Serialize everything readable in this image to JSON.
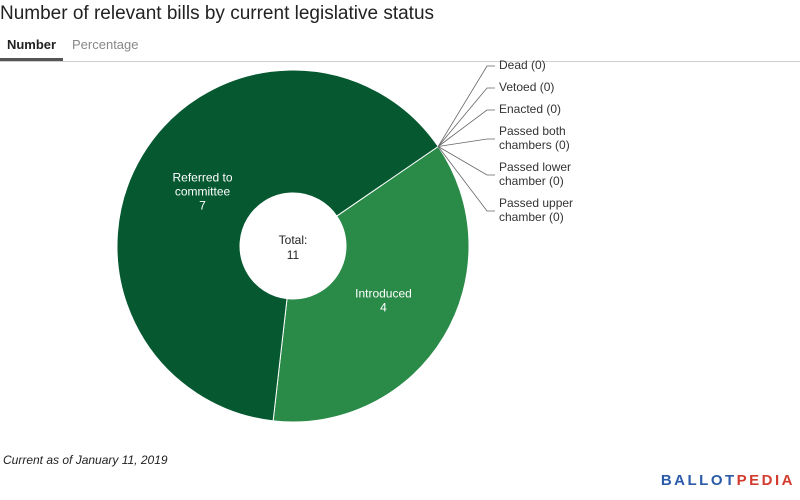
{
  "title": "Number of relevant bills by current legislative status",
  "tabs": [
    {
      "label": "Number",
      "active": true
    },
    {
      "label": "Percentage",
      "active": false
    }
  ],
  "chart_data": {
    "type": "pie",
    "categories": [
      "Introduced",
      "Referred to committee",
      "Dead",
      "Vetoed",
      "Enacted",
      "Passed both chambers",
      "Passed lower chamber",
      "Passed upper chamber"
    ],
    "values": [
      4,
      7,
      0,
      0,
      0,
      0,
      0,
      0
    ],
    "colors": [
      "#2a8a48",
      "#055830",
      "#055830",
      "#055830",
      "#055830",
      "#055830",
      "#055830",
      "#055830"
    ],
    "center_label": "Total:",
    "center_value": 11,
    "slice_labels": [
      {
        "lines": [
          "Introduced"
        ],
        "value": "4"
      },
      {
        "lines": [
          "Referred to",
          "committee"
        ],
        "value": "7"
      }
    ],
    "callouts": [
      {
        "lines": [
          "Dead (0)"
        ]
      },
      {
        "lines": [
          "Vetoed (0)"
        ]
      },
      {
        "lines": [
          "Enacted (0)"
        ]
      },
      {
        "lines": [
          "Passed both",
          "chambers (0)"
        ]
      },
      {
        "lines": [
          "Passed lower",
          "chamber (0)"
        ]
      },
      {
        "lines": [
          "Passed upper",
          "chamber (0)"
        ]
      }
    ]
  },
  "footnote": "Current as of January 11, 2019",
  "logo": {
    "part1": "BALLOT",
    "part2": "PEDIA"
  }
}
